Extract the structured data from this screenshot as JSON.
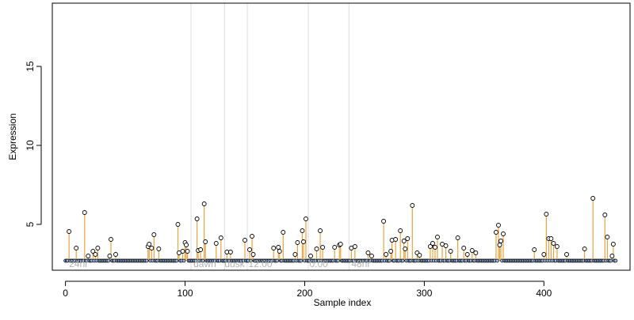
{
  "chart_data": {
    "type": "scatter",
    "xlabel": "Sample index",
    "ylabel": "Expression",
    "xlim": [
      -11,
      472
    ],
    "ylim": [
      2.1,
      19.0
    ],
    "xticks": [
      0,
      100,
      200,
      300,
      400
    ],
    "yticks": [
      5,
      10,
      15
    ],
    "baseline": 2.7,
    "region_lines": [
      105,
      133,
      152,
      203,
      237
    ],
    "region_labels": [
      {
        "x": 3,
        "text": "24hr"
      },
      {
        "x": 107,
        "text": "dawn"
      },
      {
        "x": 133,
        "text": "dusk"
      },
      {
        "x": 153,
        "text": "12:00"
      },
      {
        "x": 204,
        "text": "0:00"
      },
      {
        "x": 239,
        "text": "48hr"
      }
    ],
    "colors": {
      "stem": "#e8a33d",
      "baseline_points": "#9bb7e0",
      "region_line": "#dcdcdc",
      "region_label": "#b0b0b0"
    },
    "n_samples": 461,
    "peaks": [
      {
        "x": 3,
        "y": 4.55
      },
      {
        "x": 9,
        "y": 3.5
      },
      {
        "x": 16,
        "y": 5.75
      },
      {
        "x": 19,
        "y": 3.0
      },
      {
        "x": 23,
        "y": 3.3
      },
      {
        "x": 25,
        "y": 3.1
      },
      {
        "x": 27,
        "y": 3.5
      },
      {
        "x": 37,
        "y": 3.0
      },
      {
        "x": 38,
        "y": 4.05
      },
      {
        "x": 42,
        "y": 3.1
      },
      {
        "x": 69,
        "y": 3.6
      },
      {
        "x": 70,
        "y": 3.75
      },
      {
        "x": 72,
        "y": 3.5
      },
      {
        "x": 74,
        "y": 4.35
      },
      {
        "x": 78,
        "y": 3.45
      },
      {
        "x": 94,
        "y": 5.0
      },
      {
        "x": 95,
        "y": 3.2
      },
      {
        "x": 98,
        "y": 3.3
      },
      {
        "x": 100,
        "y": 3.85
      },
      {
        "x": 101,
        "y": 3.7
      },
      {
        "x": 102,
        "y": 3.3
      },
      {
        "x": 110,
        "y": 5.35
      },
      {
        "x": 111,
        "y": 3.35
      },
      {
        "x": 113,
        "y": 3.4
      },
      {
        "x": 116,
        "y": 6.3
      },
      {
        "x": 117,
        "y": 3.9
      },
      {
        "x": 126,
        "y": 3.8
      },
      {
        "x": 130,
        "y": 4.15
      },
      {
        "x": 135,
        "y": 3.25
      },
      {
        "x": 138,
        "y": 3.25
      },
      {
        "x": 150,
        "y": 4.0
      },
      {
        "x": 154,
        "y": 3.4
      },
      {
        "x": 156,
        "y": 4.25
      },
      {
        "x": 157,
        "y": 3.1
      },
      {
        "x": 174,
        "y": 3.5
      },
      {
        "x": 178,
        "y": 3.55
      },
      {
        "x": 179,
        "y": 3.3
      },
      {
        "x": 182,
        "y": 4.5
      },
      {
        "x": 192,
        "y": 3.1
      },
      {
        "x": 194,
        "y": 3.85
      },
      {
        "x": 198,
        "y": 4.6
      },
      {
        "x": 199,
        "y": 3.9
      },
      {
        "x": 201,
        "y": 5.35
      },
      {
        "x": 205,
        "y": 3.0
      },
      {
        "x": 210,
        "y": 3.45
      },
      {
        "x": 213,
        "y": 4.6
      },
      {
        "x": 215,
        "y": 3.55
      },
      {
        "x": 225,
        "y": 3.55
      },
      {
        "x": 229,
        "y": 3.7
      },
      {
        "x": 230,
        "y": 3.75
      },
      {
        "x": 239,
        "y": 3.5
      },
      {
        "x": 242,
        "y": 3.6
      },
      {
        "x": 253,
        "y": 3.2
      },
      {
        "x": 256,
        "y": 3.0
      },
      {
        "x": 266,
        "y": 5.2
      },
      {
        "x": 268,
        "y": 3.1
      },
      {
        "x": 272,
        "y": 3.3
      },
      {
        "x": 273,
        "y": 4.0
      },
      {
        "x": 276,
        "y": 4.05
      },
      {
        "x": 280,
        "y": 4.6
      },
      {
        "x": 283,
        "y": 3.95
      },
      {
        "x": 284,
        "y": 3.45
      },
      {
        "x": 286,
        "y": 4.1
      },
      {
        "x": 290,
        "y": 6.2
      },
      {
        "x": 294,
        "y": 3.2
      },
      {
        "x": 296,
        "y": 3.05
      },
      {
        "x": 305,
        "y": 3.6
      },
      {
        "x": 307,
        "y": 3.8
      },
      {
        "x": 309,
        "y": 3.55
      },
      {
        "x": 311,
        "y": 4.2
      },
      {
        "x": 315,
        "y": 3.75
      },
      {
        "x": 318,
        "y": 3.65
      },
      {
        "x": 322,
        "y": 3.3
      },
      {
        "x": 328,
        "y": 4.15
      },
      {
        "x": 333,
        "y": 3.5
      },
      {
        "x": 336,
        "y": 3.1
      },
      {
        "x": 340,
        "y": 3.35
      },
      {
        "x": 343,
        "y": 3.2
      },
      {
        "x": 360,
        "y": 4.5
      },
      {
        "x": 362,
        "y": 4.95
      },
      {
        "x": 363,
        "y": 3.7
      },
      {
        "x": 364,
        "y": 3.95
      },
      {
        "x": 366,
        "y": 4.4
      },
      {
        "x": 392,
        "y": 3.4
      },
      {
        "x": 400,
        "y": 3.1
      },
      {
        "x": 402,
        "y": 5.65
      },
      {
        "x": 404,
        "y": 4.1
      },
      {
        "x": 406,
        "y": 4.1
      },
      {
        "x": 408,
        "y": 3.8
      },
      {
        "x": 411,
        "y": 3.6
      },
      {
        "x": 419,
        "y": 3.1
      },
      {
        "x": 434,
        "y": 3.45
      },
      {
        "x": 441,
        "y": 6.65
      },
      {
        "x": 451,
        "y": 5.6
      },
      {
        "x": 453,
        "y": 4.2
      },
      {
        "x": 457,
        "y": 3.0
      },
      {
        "x": 458,
        "y": 3.75
      }
    ]
  }
}
